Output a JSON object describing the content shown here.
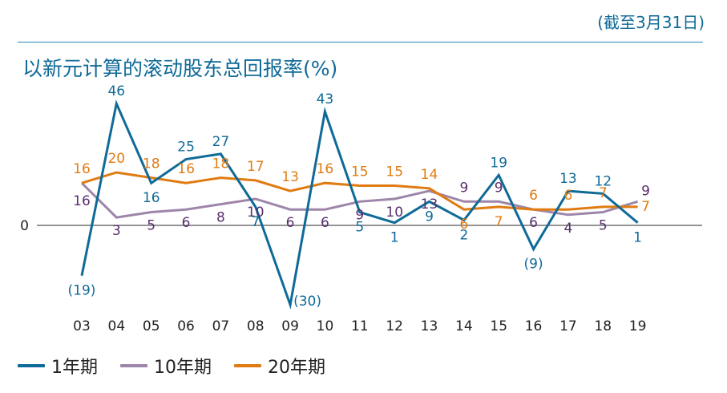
{
  "header": {
    "note": "(截至3月31日)",
    "title": "以新元计算的滚动股东总回报率(%)"
  },
  "chart_data": {
    "type": "line",
    "title": "以新元计算的滚动股东总回报率(%)",
    "categories": [
      "03",
      "04",
      "05",
      "06",
      "07",
      "08",
      "09",
      "10",
      "11",
      "12",
      "13",
      "14",
      "15",
      "16",
      "17",
      "18",
      "19"
    ],
    "y_tick_labels": [
      "0"
    ],
    "ylim": [
      -30,
      46
    ],
    "grid": false,
    "legend_position": "bottom-left",
    "series": [
      {
        "name": "1年期",
        "color": "#0f6a97",
        "values": [
          -19,
          46,
          16,
          25,
          27,
          7,
          -30,
          43,
          5,
          1,
          9,
          2,
          19,
          -9,
          13,
          12,
          1
        ],
        "labels": [
          "(19)",
          "46",
          "16",
          "25",
          "27",
          "7",
          "(30)",
          "43",
          "5",
          "1",
          "9",
          "2",
          "19",
          "(9)",
          "13",
          "12",
          "1"
        ]
      },
      {
        "name": "10年期",
        "color": "#9e86aa",
        "values": [
          16,
          3,
          5,
          6,
          8,
          10,
          6,
          6,
          9,
          10,
          13,
          9,
          9,
          6,
          4,
          5,
          9
        ],
        "labels": [
          "16",
          "3",
          "5",
          "6",
          "8",
          "10",
          "6",
          "6",
          "9",
          "10",
          "13",
          "9",
          "9",
          "6",
          "4",
          "5",
          "9"
        ]
      },
      {
        "name": "20年期",
        "color": "#e07b12",
        "values": [
          16,
          20,
          18,
          16,
          18,
          17,
          13,
          16,
          15,
          15,
          14,
          6,
          7,
          6,
          6,
          7,
          7
        ],
        "labels": [
          "16",
          "20",
          "18",
          "16",
          "18",
          "17",
          "13",
          "16",
          "15",
          "15",
          "14",
          "6",
          "7",
          "6",
          "6",
          "7",
          "7"
        ]
      }
    ]
  }
}
